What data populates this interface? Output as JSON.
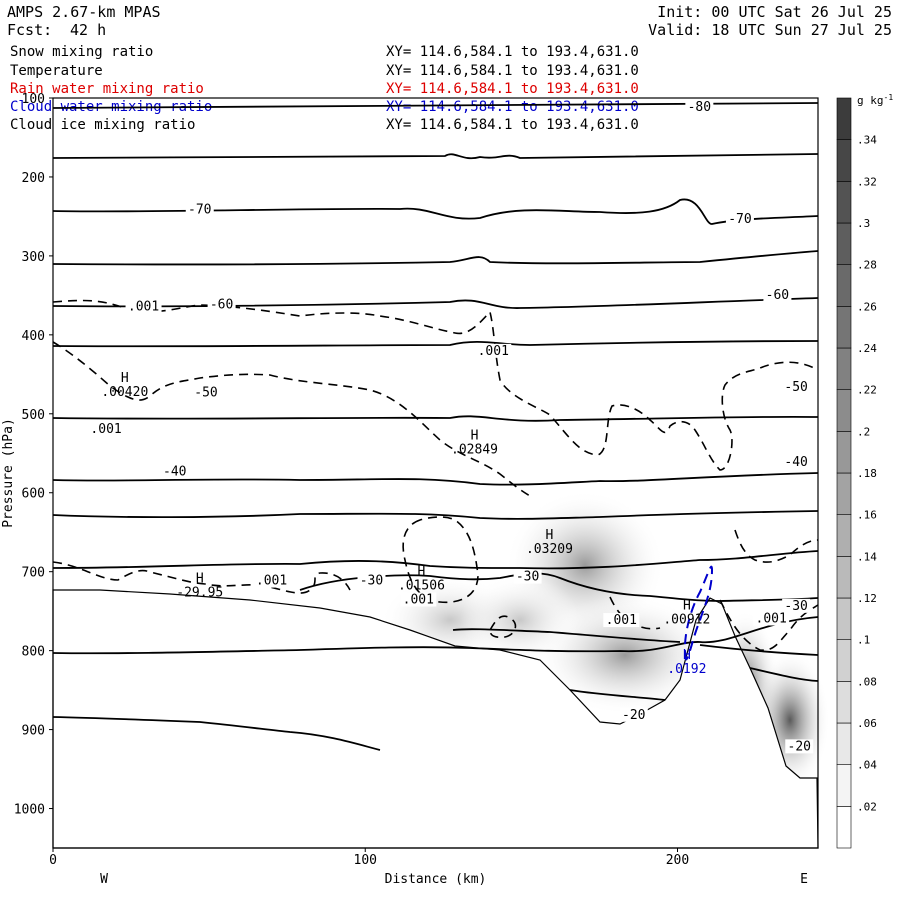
{
  "header": {
    "model": "AMPS 2.67-km MPAS",
    "fcst_label": "Fcst:",
    "fcst_value": "42 h",
    "init": "Init: 00 UTC Sat 26 Jul 25",
    "valid": "Valid: 18 UTC Sun 27 Jul 25"
  },
  "fields": [
    {
      "name": "Snow mixing ratio",
      "xy": "XY= 114.6,584.1 to 193.4,631.0",
      "color": "#000000"
    },
    {
      "name": "Temperature",
      "xy": "XY= 114.6,584.1 to 193.4,631.0",
      "color": "#000000"
    },
    {
      "name": "Rain water mixing ratio",
      "xy": "XY= 114.6,584.1 to 193.4,631.0",
      "color": "#dd0000"
    },
    {
      "name": "Cloud water mixing ratio",
      "xy": "XY= 114.6,584.1 to 193.4,631.0",
      "color": "#0000cc"
    },
    {
      "name": "Cloud ice mixing ratio",
      "xy": "XY= 114.6,584.1 to 193.4,631.0",
      "color": "#000000"
    }
  ],
  "chart_data": {
    "type": "contour-cross-section",
    "xlabel": "Distance (km)",
    "ylabel": "Pressure (hPa)",
    "xlim": [
      0,
      245
    ],
    "ylim": [
      1050,
      100
    ],
    "x_ticks": [
      "0",
      "100",
      "200"
    ],
    "y_ticks": [
      "100",
      "200",
      "300",
      "400",
      "500",
      "600",
      "700",
      "800",
      "900",
      "1000"
    ],
    "x_end_labels": {
      "left": "W",
      "right": "E"
    },
    "colorbar": {
      "unit": "g kg",
      "unit_exp": "-1",
      "levels": [
        ".02",
        ".04",
        ".06",
        ".08",
        ".1",
        ".12",
        ".14",
        ".16",
        ".18",
        ".2",
        ".22",
        ".24",
        ".26",
        ".28",
        ".3",
        ".32",
        ".34"
      ]
    },
    "temperature_labels": [
      {
        "text": "-80",
        "x": 207,
        "p": 110
      },
      {
        "text": "-70",
        "x": 47,
        "p": 240
      },
      {
        "text": "-70",
        "x": 220,
        "p": 252
      },
      {
        "text": "-60",
        "x": 54,
        "p": 360
      },
      {
        "text": "-60",
        "x": 232,
        "p": 348
      },
      {
        "text": "-50",
        "x": 49,
        "p": 472
      },
      {
        "text": "-50",
        "x": 238,
        "p": 465
      },
      {
        "text": "-40",
        "x": 39,
        "p": 572
      },
      {
        "text": "-40",
        "x": 238,
        "p": 560
      },
      {
        "text": "-30",
        "x": 102,
        "p": 710
      },
      {
        "text": "-30",
        "x": 152,
        "p": 705
      },
      {
        "text": "-30",
        "x": 238,
        "p": 742
      },
      {
        "text": "-20",
        "x": 186,
        "p": 880
      },
      {
        "text": "-20",
        "x": 239,
        "p": 920
      }
    ],
    "snow_labels": [
      {
        "text": ".001",
        "x": 29,
        "p": 363
      },
      {
        "text": ".001",
        "x": 141,
        "p": 419
      },
      {
        "text": ".001",
        "x": 17,
        "p": 518
      },
      {
        "text": ".001",
        "x": 70,
        "p": 710
      },
      {
        "text": ".001",
        "x": 117,
        "p": 734
      },
      {
        "text": ".001",
        "x": 182,
        "p": 760
      },
      {
        "text": ".001",
        "x": 230,
        "p": 758
      }
    ],
    "maxima": [
      {
        "label": "H",
        "value": ".00420",
        "x": 23,
        "p": 470,
        "color": "#000000"
      },
      {
        "label": "H",
        "value": ".02849",
        "x": 135,
        "p": 543,
        "color": "#000000"
      },
      {
        "label": "H",
        "value": ".03209",
        "x": 159,
        "p": 669,
        "color": "#000000"
      },
      {
        "label": "H",
        "value": ".01506",
        "x": 118,
        "p": 715,
        "color": "#000000"
      },
      {
        "label": "H",
        "value": "-29.95",
        "x": 47,
        "p": 724,
        "color": "#000000"
      },
      {
        "label": "H",
        "value": ".00912",
        "x": 203,
        "p": 758,
        "color": "#000000"
      },
      {
        "label": "H",
        "value": ".0192",
        "x": 203,
        "p": 821,
        "color": "#0000cc"
      }
    ]
  }
}
